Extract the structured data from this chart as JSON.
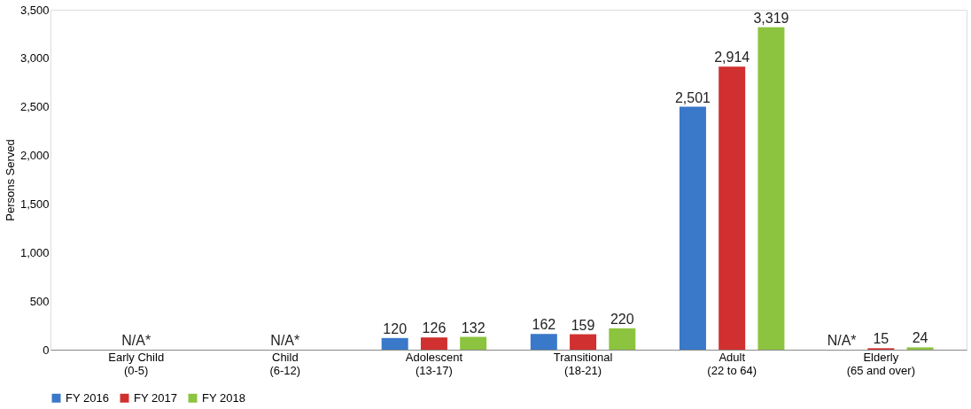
{
  "chart_data": {
    "type": "bar",
    "ylabel": "Persons Served",
    "categories": [
      "Early Child\n(0-5)",
      "Child\n(6-12)",
      "Adolescent\n(13-17)",
      "Transitional\n(18-21)",
      "Adult\n(22 to 64)",
      "Elderly\n(65 and over)"
    ],
    "series": [
      {
        "name": "FY 2016",
        "color": "#3a78c9",
        "values": [
          null,
          null,
          120,
          162,
          2501,
          null
        ],
        "value_labels": [
          null,
          null,
          "120",
          "162",
          "2,501",
          "N/A*"
        ]
      },
      {
        "name": "FY 2017",
        "color": "#d0302f",
        "values": [
          null,
          null,
          126,
          159,
          2914,
          15
        ],
        "value_labels": [
          "N/A*",
          "N/A*",
          "126",
          "159",
          "2,914",
          "15"
        ]
      },
      {
        "name": "FY 2018",
        "color": "#8cc43f",
        "values": [
          null,
          null,
          132,
          220,
          3319,
          24
        ],
        "value_labels": [
          null,
          null,
          "132",
          "220",
          "3,319",
          "24"
        ]
      }
    ],
    "ylim": [
      0,
      3500
    ],
    "yticks": [
      0,
      500,
      {
        "value": 1000,
        "label": "1,000"
      },
      {
        "value": 1500,
        "label": "1,500"
      },
      {
        "value": 2000,
        "label": "2,000"
      },
      {
        "value": 2500,
        "label": "2,500"
      },
      {
        "value": 3000,
        "label": "3,000"
      },
      {
        "value": 3500,
        "label": "3,500"
      }
    ],
    "grid": false,
    "legend": "bottom"
  }
}
